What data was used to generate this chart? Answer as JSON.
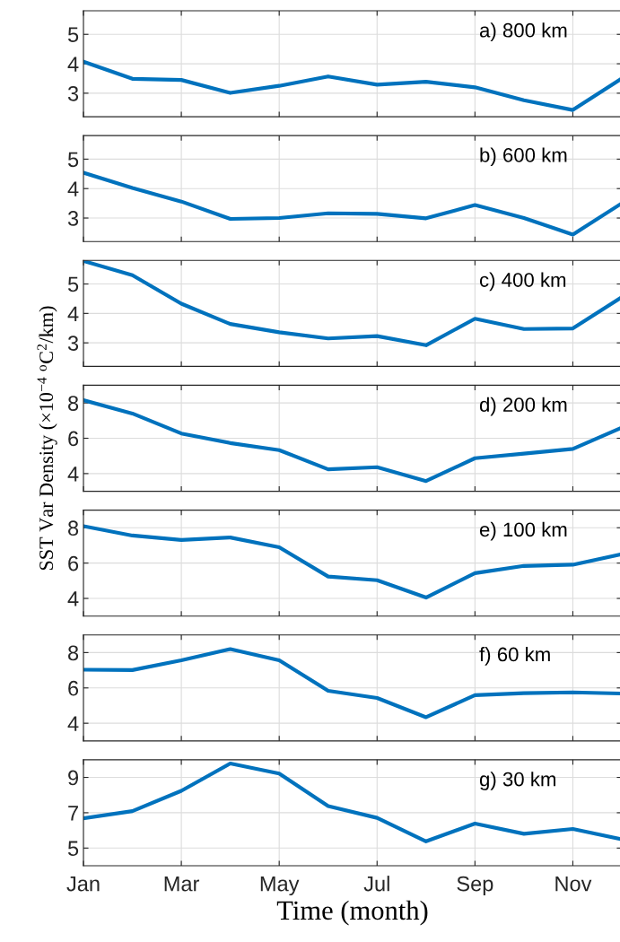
{
  "chart_data": [
    {
      "type": "line",
      "categories": [
        null,
        null,
        null,
        null,
        null,
        null,
        null,
        null,
        null,
        null,
        null,
        null
      ],
      "ylim": [
        2.2,
        5.8
      ],
      "yticks": [
        3,
        4,
        5
      ],
      "grid": true,
      "tick_labels": "y",
      "annotations": [
        "a) 800 km"
      ],
      "series": [
        {
          "color": "#0072bd",
          "values": [
            4.07,
            3.49,
            3.45,
            3.01,
            3.25,
            3.57,
            3.29,
            3.39,
            3.2,
            2.76,
            2.43,
            3.5
          ]
        }
      ]
    },
    {
      "type": "line",
      "categories": [
        null,
        null,
        null,
        null,
        null,
        null,
        null,
        null,
        null,
        null,
        null,
        null
      ],
      "ylim": [
        2.2,
        5.8
      ],
      "yticks": [
        3,
        4,
        5
      ],
      "grid": true,
      "tick_labels": "y",
      "annotations": [
        "b) 600 km"
      ],
      "series": [
        {
          "color": "#0072bd",
          "values": [
            4.54,
            4.02,
            3.56,
            2.97,
            3.0,
            3.16,
            3.14,
            2.99,
            3.44,
            3.0,
            2.44,
            3.5
          ]
        }
      ]
    },
    {
      "type": "line",
      "categories": [
        null,
        null,
        null,
        null,
        null,
        null,
        null,
        null,
        null,
        null,
        null,
        null
      ],
      "ylim": [
        2.2,
        5.8
      ],
      "yticks": [
        3,
        4,
        5
      ],
      "grid": true,
      "tick_labels": "y",
      "annotations": [
        "c) 400 km"
      ],
      "series": [
        {
          "color": "#0072bd",
          "values": [
            5.78,
            5.3,
            4.33,
            3.64,
            3.36,
            3.15,
            3.23,
            2.92,
            3.82,
            3.47,
            3.49,
            4.55
          ]
        }
      ]
    },
    {
      "type": "line",
      "categories": [
        null,
        null,
        null,
        null,
        null,
        null,
        null,
        null,
        null,
        null,
        null,
        null
      ],
      "ylim": [
        3,
        9
      ],
      "yticks": [
        4,
        6,
        8
      ],
      "grid": true,
      "tick_labels": "y",
      "annotations": [
        "d) 200 km"
      ],
      "ylabel": "SST Var Density (×10$^{−4}$ $^{o}$C$^{2}$/km)",
      "series": [
        {
          "color": "#0072bd",
          "values": [
            8.16,
            7.4,
            6.27,
            5.73,
            5.33,
            4.24,
            4.36,
            3.58,
            4.87,
            5.13,
            5.4,
            6.6
          ]
        }
      ]
    },
    {
      "type": "line",
      "categories": [
        null,
        null,
        null,
        null,
        null,
        null,
        null,
        null,
        null,
        null,
        null,
        null
      ],
      "ylim": [
        3,
        9
      ],
      "yticks": [
        4,
        6,
        8
      ],
      "grid": true,
      "tick_labels": "y",
      "annotations": [
        "e) 100 km"
      ],
      "series": [
        {
          "color": "#0072bd",
          "values": [
            8.09,
            7.56,
            7.31,
            7.45,
            6.9,
            5.24,
            5.03,
            4.05,
            5.43,
            5.84,
            5.91,
            6.5
          ]
        }
      ]
    },
    {
      "type": "line",
      "categories": [
        null,
        null,
        null,
        null,
        null,
        null,
        null,
        null,
        null,
        null,
        null,
        null
      ],
      "ylim": [
        3,
        9
      ],
      "yticks": [
        4,
        6,
        8
      ],
      "grid": true,
      "tick_labels": "y",
      "annotations": [
        "f) 60 km"
      ],
      "series": [
        {
          "color": "#0072bd",
          "values": [
            7.03,
            7.01,
            7.56,
            8.2,
            7.56,
            5.84,
            5.43,
            4.34,
            5.59,
            5.7,
            5.75,
            5.68
          ]
        }
      ]
    },
    {
      "type": "line",
      "categories": [
        "Jan",
        null,
        "Mar",
        null,
        "May",
        null,
        "Jul",
        null,
        "Sep",
        null,
        "Nov",
        null
      ],
      "ylim": [
        4,
        10
      ],
      "yticks": [
        5,
        7,
        9
      ],
      "grid": true,
      "annotations": [
        "g) 30 km"
      ],
      "xlabel": "Time (month)",
      "series": [
        {
          "color": "#0072bd",
          "values": [
            6.69,
            7.09,
            8.24,
            9.79,
            9.22,
            7.38,
            6.71,
            5.38,
            6.39,
            5.81,
            6.08,
            5.5
          ]
        }
      ]
    }
  ]
}
